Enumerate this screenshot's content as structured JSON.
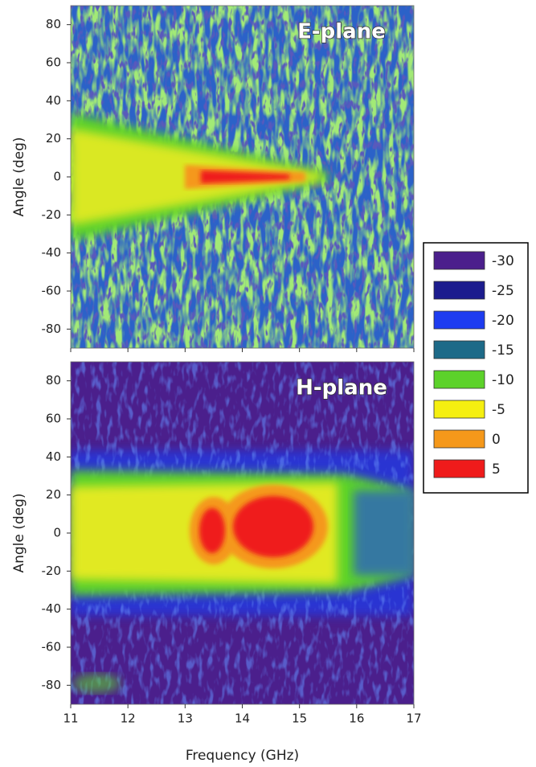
{
  "chart_data": [
    {
      "type": "heatmap",
      "title": "E-plane",
      "ylabel": "Angle (deg)",
      "xlim": [
        11,
        17
      ],
      "xticks": [
        11,
        12,
        13,
        14,
        15,
        16,
        17
      ],
      "ylim": [
        -90,
        90
      ],
      "yticks": [
        -80,
        -60,
        -40,
        -20,
        0,
        20,
        40,
        60,
        80
      ]
    },
    {
      "type": "heatmap",
      "title": "H-plane",
      "ylabel": "Angle (deg)",
      "xlabel": "Frequency (GHz)",
      "xlim": [
        11,
        17
      ],
      "xticks": [
        11,
        12,
        13,
        14,
        15,
        16,
        17
      ],
      "ylim": [
        -90,
        90
      ],
      "yticks": [
        -80,
        -60,
        -40,
        -20,
        0,
        20,
        40,
        60,
        80
      ]
    }
  ],
  "colorbar": {
    "levels": [
      -30,
      -25,
      -20,
      -15,
      -10,
      -5,
      0,
      5
    ],
    "colors": [
      "#4b1f8c",
      "#1c1c8e",
      "#1e3cf0",
      "#1d6a88",
      "#5cd22a",
      "#f5ef10",
      "#f5981a",
      "#ef1b1b"
    ]
  }
}
